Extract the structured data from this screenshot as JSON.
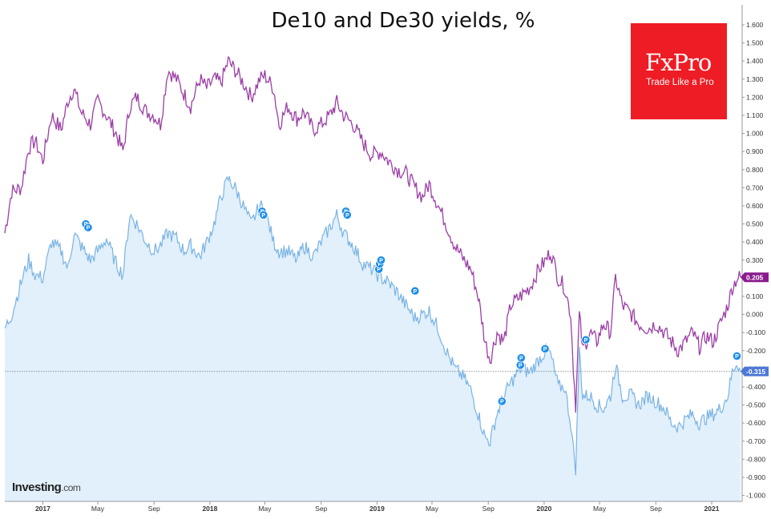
{
  "title": "De10 and De30 yields, %",
  "logo": {
    "brand": "FxPro",
    "tagline": "Trade Like a Pro"
  },
  "watermark": {
    "name": "Investing",
    "suffix": ".com"
  },
  "colors": {
    "de30": "#9b3fa6",
    "de10": "#7ab3e3",
    "de10_fill": "#e1f0fb",
    "marker": "#1f8fe8",
    "de30_badge": "#8a1c8e",
    "de10_badge": "#4d79d6"
  },
  "chart_data": {
    "type": "line",
    "title": "De10 and De30 yields, %",
    "ylim": [
      -1.05,
      1.65
    ],
    "yticks": [
      "1.600",
      "1.500",
      "1.400",
      "1.300",
      "1.200",
      "1.100",
      "1.000",
      "0.900",
      "0.800",
      "0.700",
      "0.600",
      "0.500",
      "0.400",
      "0.300",
      "0.200",
      "0.100",
      "0.000",
      "-0.100",
      "-0.200",
      "-0.300",
      "-0.400",
      "-0.500",
      "-0.600",
      "-0.700",
      "-0.800",
      "-0.900",
      "-1.000"
    ],
    "xticks": [
      {
        "label": "2017",
        "date": "2017-01-01",
        "year": true
      },
      {
        "label": "May",
        "date": "2017-05-01",
        "year": false
      },
      {
        "label": "Sep",
        "date": "2017-09-01",
        "year": false
      },
      {
        "label": "2018",
        "date": "2018-01-01",
        "year": true
      },
      {
        "label": "May",
        "date": "2018-05-01",
        "year": false
      },
      {
        "label": "Sep",
        "date": "2018-09-01",
        "year": false
      },
      {
        "label": "2019",
        "date": "2019-01-01",
        "year": true
      },
      {
        "label": "May",
        "date": "2019-05-01",
        "year": false
      },
      {
        "label": "Sep",
        "date": "2019-09-01",
        "year": false
      },
      {
        "label": "2020",
        "date": "2020-01-01",
        "year": true
      },
      {
        "label": "May",
        "date": "2020-05-01",
        "year": false
      },
      {
        "label": "Sep",
        "date": "2020-09-01",
        "year": false
      },
      {
        "label": "2021",
        "date": "2021-01-01",
        "year": true
      }
    ],
    "xrange": [
      "2016-10-10",
      "2021-03-05"
    ],
    "series": [
      {
        "key": "de30",
        "last_value": "0.205",
        "points": [
          [
            "2016-10-10",
            0.45
          ],
          [
            "2016-10-25",
            0.68
          ],
          [
            "2016-11-15",
            0.7
          ],
          [
            "2016-12-01",
            0.92
          ],
          [
            "2016-12-15",
            0.96
          ],
          [
            "2017-01-01",
            0.85
          ],
          [
            "2017-01-20",
            1.1
          ],
          [
            "2017-02-10",
            1.02
          ],
          [
            "2017-02-25",
            1.18
          ],
          [
            "2017-03-10",
            1.25
          ],
          [
            "2017-03-25",
            1.12
          ],
          [
            "2017-04-15",
            1.05
          ],
          [
            "2017-05-01",
            1.18
          ],
          [
            "2017-05-20",
            1.1
          ],
          [
            "2017-06-10",
            1.0
          ],
          [
            "2017-06-25",
            0.9
          ],
          [
            "2017-07-10",
            1.15
          ],
          [
            "2017-07-25",
            1.2
          ],
          [
            "2017-08-15",
            1.12
          ],
          [
            "2017-09-01",
            1.1
          ],
          [
            "2017-09-15",
            1.05
          ],
          [
            "2017-10-01",
            1.35
          ],
          [
            "2017-10-20",
            1.3
          ],
          [
            "2017-11-05",
            1.22
          ],
          [
            "2017-11-20",
            1.15
          ],
          [
            "2017-12-10",
            1.3
          ],
          [
            "2017-12-25",
            1.25
          ],
          [
            "2018-01-10",
            1.3
          ],
          [
            "2018-01-25",
            1.28
          ],
          [
            "2018-02-10",
            1.4
          ],
          [
            "2018-02-25",
            1.35
          ],
          [
            "2018-03-15",
            1.28
          ],
          [
            "2018-04-01",
            1.2
          ],
          [
            "2018-04-20",
            1.3
          ],
          [
            "2018-05-01",
            1.32
          ],
          [
            "2018-05-20",
            1.25
          ],
          [
            "2018-06-01",
            1.05
          ],
          [
            "2018-06-20",
            1.15
          ],
          [
            "2018-07-10",
            1.08
          ],
          [
            "2018-07-25",
            1.12
          ],
          [
            "2018-08-15",
            1.02
          ],
          [
            "2018-09-01",
            1.05
          ],
          [
            "2018-09-20",
            1.1
          ],
          [
            "2018-10-05",
            1.17
          ],
          [
            "2018-10-20",
            1.1
          ],
          [
            "2018-11-10",
            1.05
          ],
          [
            "2018-12-01",
            0.95
          ],
          [
            "2018-12-20",
            0.88
          ],
          [
            "2019-01-10",
            0.9
          ],
          [
            "2019-01-25",
            0.85
          ],
          [
            "2019-02-15",
            0.8
          ],
          [
            "2019-03-05",
            0.78
          ],
          [
            "2019-03-25",
            0.7
          ],
          [
            "2019-04-10",
            0.65
          ],
          [
            "2019-04-25",
            0.72
          ],
          [
            "2019-05-15",
            0.6
          ],
          [
            "2019-06-01",
            0.5
          ],
          [
            "2019-06-20",
            0.38
          ],
          [
            "2019-07-10",
            0.3
          ],
          [
            "2019-07-25",
            0.25
          ],
          [
            "2019-08-10",
            0.1
          ],
          [
            "2019-08-25",
            -0.15
          ],
          [
            "2019-09-05",
            -0.25
          ],
          [
            "2019-09-20",
            -0.1
          ],
          [
            "2019-10-05",
            -0.15
          ],
          [
            "2019-10-20",
            0.05
          ],
          [
            "2019-11-10",
            0.1
          ],
          [
            "2019-12-01",
            0.15
          ],
          [
            "2019-12-20",
            0.25
          ],
          [
            "2020-01-05",
            0.3
          ],
          [
            "2020-01-15",
            0.35
          ],
          [
            "2020-02-01",
            0.2
          ],
          [
            "2020-02-15",
            0.15
          ],
          [
            "2020-02-28",
            0.0
          ],
          [
            "2020-03-05",
            -0.3
          ],
          [
            "2020-03-10",
            -0.5
          ],
          [
            "2020-03-18",
            0.0
          ],
          [
            "2020-03-25",
            -0.2
          ],
          [
            "2020-04-10",
            -0.1
          ],
          [
            "2020-04-25",
            -0.15
          ],
          [
            "2020-05-10",
            -0.05
          ],
          [
            "2020-05-25",
            -0.1
          ],
          [
            "2020-06-05",
            0.2
          ],
          [
            "2020-06-20",
            0.05
          ],
          [
            "2020-07-10",
            0.0
          ],
          [
            "2020-07-25",
            -0.05
          ],
          [
            "2020-08-15",
            -0.08
          ],
          [
            "2020-09-01",
            -0.05
          ],
          [
            "2020-09-20",
            -0.1
          ],
          [
            "2020-10-05",
            -0.15
          ],
          [
            "2020-10-20",
            -0.2
          ],
          [
            "2020-11-05",
            -0.15
          ],
          [
            "2020-11-20",
            -0.1
          ],
          [
            "2020-12-05",
            -0.18
          ],
          [
            "2020-12-20",
            -0.12
          ],
          [
            "2021-01-05",
            -0.15
          ],
          [
            "2021-01-20",
            -0.05
          ],
          [
            "2021-02-05",
            0.05
          ],
          [
            "2021-02-15",
            0.15
          ],
          [
            "2021-02-25",
            0.2
          ],
          [
            "2021-03-05",
            0.205
          ]
        ]
      },
      {
        "key": "de10",
        "last_value": "-0.315",
        "points": [
          [
            "2016-10-10",
            -0.08
          ],
          [
            "2016-10-25",
            0.0
          ],
          [
            "2016-11-15",
            0.18
          ],
          [
            "2016-12-01",
            0.3
          ],
          [
            "2016-12-15",
            0.22
          ],
          [
            "2017-01-01",
            0.2
          ],
          [
            "2017-01-20",
            0.4
          ],
          [
            "2017-02-10",
            0.35
          ],
          [
            "2017-02-25",
            0.25
          ],
          [
            "2017-03-10",
            0.45
          ],
          [
            "2017-03-25",
            0.38
          ],
          [
            "2017-04-15",
            0.3
          ],
          [
            "2017-05-01",
            0.35
          ],
          [
            "2017-05-20",
            0.42
          ],
          [
            "2017-06-10",
            0.28
          ],
          [
            "2017-06-25",
            0.22
          ],
          [
            "2017-07-10",
            0.55
          ],
          [
            "2017-07-25",
            0.5
          ],
          [
            "2017-08-15",
            0.4
          ],
          [
            "2017-09-01",
            0.35
          ],
          [
            "2017-09-15",
            0.38
          ],
          [
            "2017-10-01",
            0.45
          ],
          [
            "2017-10-20",
            0.42
          ],
          [
            "2017-11-05",
            0.35
          ],
          [
            "2017-11-20",
            0.38
          ],
          [
            "2017-12-10",
            0.32
          ],
          [
            "2017-12-25",
            0.4
          ],
          [
            "2018-01-10",
            0.5
          ],
          [
            "2018-01-25",
            0.65
          ],
          [
            "2018-02-10",
            0.75
          ],
          [
            "2018-02-25",
            0.7
          ],
          [
            "2018-03-15",
            0.6
          ],
          [
            "2018-04-01",
            0.5
          ],
          [
            "2018-04-20",
            0.6
          ],
          [
            "2018-05-01",
            0.58
          ],
          [
            "2018-05-20",
            0.4
          ],
          [
            "2018-06-01",
            0.35
          ],
          [
            "2018-06-20",
            0.35
          ],
          [
            "2018-07-10",
            0.3
          ],
          [
            "2018-07-25",
            0.38
          ],
          [
            "2018-08-15",
            0.32
          ],
          [
            "2018-09-01",
            0.4
          ],
          [
            "2018-09-20",
            0.48
          ],
          [
            "2018-10-05",
            0.55
          ],
          [
            "2018-10-20",
            0.45
          ],
          [
            "2018-11-10",
            0.38
          ],
          [
            "2018-12-01",
            0.28
          ],
          [
            "2018-12-20",
            0.25
          ],
          [
            "2019-01-10",
            0.2
          ],
          [
            "2019-01-25",
            0.18
          ],
          [
            "2019-02-15",
            0.12
          ],
          [
            "2019-03-05",
            0.05
          ],
          [
            "2019-03-25",
            -0.02
          ],
          [
            "2019-04-10",
            0.0
          ],
          [
            "2019-04-25",
            0.02
          ],
          [
            "2019-05-15",
            -0.08
          ],
          [
            "2019-06-01",
            -0.2
          ],
          [
            "2019-06-20",
            -0.3
          ],
          [
            "2019-07-10",
            -0.35
          ],
          [
            "2019-07-25",
            -0.42
          ],
          [
            "2019-08-10",
            -0.55
          ],
          [
            "2019-08-25",
            -0.68
          ],
          [
            "2019-09-05",
            -0.7
          ],
          [
            "2019-09-20",
            -0.55
          ],
          [
            "2019-10-05",
            -0.45
          ],
          [
            "2019-10-20",
            -0.38
          ],
          [
            "2019-11-10",
            -0.3
          ],
          [
            "2019-12-01",
            -0.32
          ],
          [
            "2019-12-20",
            -0.25
          ],
          [
            "2020-01-05",
            -0.2
          ],
          [
            "2020-01-15",
            -0.22
          ],
          [
            "2020-02-01",
            -0.4
          ],
          [
            "2020-02-15",
            -0.4
          ],
          [
            "2020-02-28",
            -0.6
          ],
          [
            "2020-03-05",
            -0.75
          ],
          [
            "2020-03-10",
            -0.85
          ],
          [
            "2020-03-18",
            -0.2
          ],
          [
            "2020-03-25",
            -0.45
          ],
          [
            "2020-04-10",
            -0.45
          ],
          [
            "2020-04-25",
            -0.5
          ],
          [
            "2020-05-10",
            -0.52
          ],
          [
            "2020-05-25",
            -0.45
          ],
          [
            "2020-06-05",
            -0.28
          ],
          [
            "2020-06-20",
            -0.45
          ],
          [
            "2020-07-10",
            -0.45
          ],
          [
            "2020-07-25",
            -0.5
          ],
          [
            "2020-08-15",
            -0.45
          ],
          [
            "2020-09-01",
            -0.48
          ],
          [
            "2020-09-20",
            -0.52
          ],
          [
            "2020-10-05",
            -0.6
          ],
          [
            "2020-10-20",
            -0.62
          ],
          [
            "2020-11-05",
            -0.58
          ],
          [
            "2020-11-20",
            -0.55
          ],
          [
            "2020-12-05",
            -0.6
          ],
          [
            "2020-12-20",
            -0.57
          ],
          [
            "2021-01-05",
            -0.55
          ],
          [
            "2021-01-20",
            -0.52
          ],
          [
            "2021-02-05",
            -0.45
          ],
          [
            "2021-02-15",
            -0.32
          ],
          [
            "2021-02-25",
            -0.26
          ],
          [
            "2021-03-05",
            -0.315
          ]
        ]
      }
    ],
    "markers": [
      {
        "date": "2017-04-05",
        "value": 0.5
      },
      {
        "date": "2017-04-10",
        "value": 0.48
      },
      {
        "date": "2018-04-25",
        "value": 0.57
      },
      {
        "date": "2018-04-28",
        "value": 0.55
      },
      {
        "date": "2018-10-25",
        "value": 0.57
      },
      {
        "date": "2018-10-28",
        "value": 0.55
      },
      {
        "date": "2019-01-05",
        "value": 0.25
      },
      {
        "date": "2019-01-07",
        "value": 0.28
      },
      {
        "date": "2019-01-10",
        "value": 0.3
      },
      {
        "date": "2019-03-25",
        "value": 0.13
      },
      {
        "date": "2019-10-01",
        "value": -0.48
      },
      {
        "date": "2019-11-10",
        "value": -0.28
      },
      {
        "date": "2019-11-12",
        "value": -0.24
      },
      {
        "date": "2020-01-03",
        "value": -0.19
      },
      {
        "date": "2020-04-01",
        "value": -0.14
      },
      {
        "date": "2021-02-25",
        "value": -0.23
      }
    ],
    "reference_line": -0.315,
    "marker_label": "P"
  }
}
